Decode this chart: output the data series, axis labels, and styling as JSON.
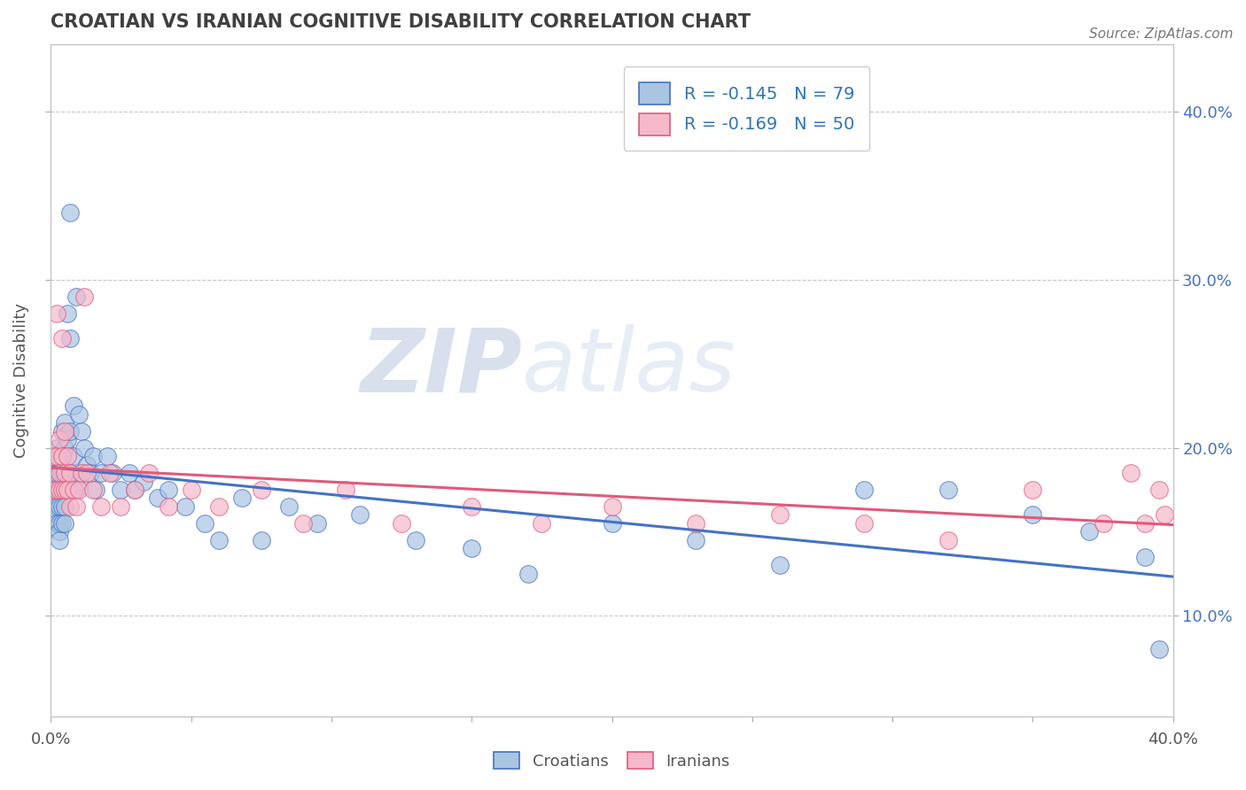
{
  "title": "CROATIAN VS IRANIAN COGNITIVE DISABILITY CORRELATION CHART",
  "source": "Source: ZipAtlas.com",
  "ylabel": "Cognitive Disability",
  "right_yticks": [
    0.1,
    0.2,
    0.3,
    0.4
  ],
  "right_yticklabels": [
    "10.0%",
    "20.0%",
    "30.0%",
    "40.0%"
  ],
  "xlim": [
    0.0,
    0.4
  ],
  "ylim": [
    0.04,
    0.44
  ],
  "croatian_color": "#aac4e2",
  "iranian_color": "#f5b8cb",
  "croatian_line_color": "#4472c4",
  "iranian_line_color": "#e05a7a",
  "legend_r1": "R = -0.145",
  "legend_n1": "N = 79",
  "legend_r2": "R = -0.169",
  "legend_n2": "N = 50",
  "watermark_zip": "ZIP",
  "watermark_atlas": "atlas",
  "background_color": "#ffffff",
  "grid_color": "#c8c8c8",
  "title_color": "#404040",
  "croatian_x": [
    0.001,
    0.001,
    0.001,
    0.002,
    0.002,
    0.002,
    0.002,
    0.002,
    0.002,
    0.003,
    0.003,
    0.003,
    0.003,
    0.003,
    0.003,
    0.003,
    0.004,
    0.004,
    0.004,
    0.004,
    0.004,
    0.004,
    0.005,
    0.005,
    0.005,
    0.005,
    0.005,
    0.005,
    0.006,
    0.006,
    0.006,
    0.006,
    0.007,
    0.007,
    0.007,
    0.007,
    0.008,
    0.008,
    0.008,
    0.009,
    0.009,
    0.01,
    0.01,
    0.011,
    0.011,
    0.012,
    0.013,
    0.014,
    0.015,
    0.016,
    0.018,
    0.02,
    0.022,
    0.025,
    0.028,
    0.03,
    0.033,
    0.038,
    0.042,
    0.048,
    0.055,
    0.06,
    0.068,
    0.075,
    0.085,
    0.095,
    0.11,
    0.13,
    0.15,
    0.17,
    0.2,
    0.23,
    0.26,
    0.29,
    0.32,
    0.35,
    0.37,
    0.39,
    0.395
  ],
  "croatian_y": [
    0.19,
    0.175,
    0.165,
    0.2,
    0.185,
    0.175,
    0.165,
    0.16,
    0.155,
    0.195,
    0.185,
    0.175,
    0.165,
    0.155,
    0.15,
    0.145,
    0.21,
    0.195,
    0.185,
    0.175,
    0.165,
    0.155,
    0.215,
    0.2,
    0.185,
    0.175,
    0.165,
    0.155,
    0.28,
    0.205,
    0.185,
    0.175,
    0.34,
    0.265,
    0.21,
    0.185,
    0.225,
    0.195,
    0.175,
    0.29,
    0.175,
    0.22,
    0.18,
    0.21,
    0.185,
    0.2,
    0.19,
    0.185,
    0.195,
    0.175,
    0.185,
    0.195,
    0.185,
    0.175,
    0.185,
    0.175,
    0.18,
    0.17,
    0.175,
    0.165,
    0.155,
    0.145,
    0.17,
    0.145,
    0.165,
    0.155,
    0.16,
    0.145,
    0.14,
    0.125,
    0.155,
    0.145,
    0.13,
    0.175,
    0.175,
    0.16,
    0.15,
    0.135,
    0.08
  ],
  "iranian_x": [
    0.001,
    0.001,
    0.002,
    0.002,
    0.002,
    0.003,
    0.003,
    0.003,
    0.004,
    0.004,
    0.004,
    0.005,
    0.005,
    0.005,
    0.006,
    0.006,
    0.007,
    0.007,
    0.008,
    0.009,
    0.01,
    0.011,
    0.012,
    0.013,
    0.015,
    0.018,
    0.021,
    0.025,
    0.03,
    0.035,
    0.042,
    0.05,
    0.06,
    0.075,
    0.09,
    0.105,
    0.125,
    0.15,
    0.175,
    0.2,
    0.23,
    0.26,
    0.29,
    0.32,
    0.35,
    0.375,
    0.385,
    0.39,
    0.395,
    0.397
  ],
  "iranian_y": [
    0.195,
    0.175,
    0.28,
    0.195,
    0.175,
    0.205,
    0.185,
    0.175,
    0.265,
    0.195,
    0.175,
    0.21,
    0.185,
    0.175,
    0.195,
    0.175,
    0.185,
    0.165,
    0.175,
    0.165,
    0.175,
    0.185,
    0.29,
    0.185,
    0.175,
    0.165,
    0.185,
    0.165,
    0.175,
    0.185,
    0.165,
    0.175,
    0.165,
    0.175,
    0.155,
    0.175,
    0.155,
    0.165,
    0.155,
    0.165,
    0.155,
    0.16,
    0.155,
    0.145,
    0.175,
    0.155,
    0.185,
    0.155,
    0.175,
    0.16
  ]
}
